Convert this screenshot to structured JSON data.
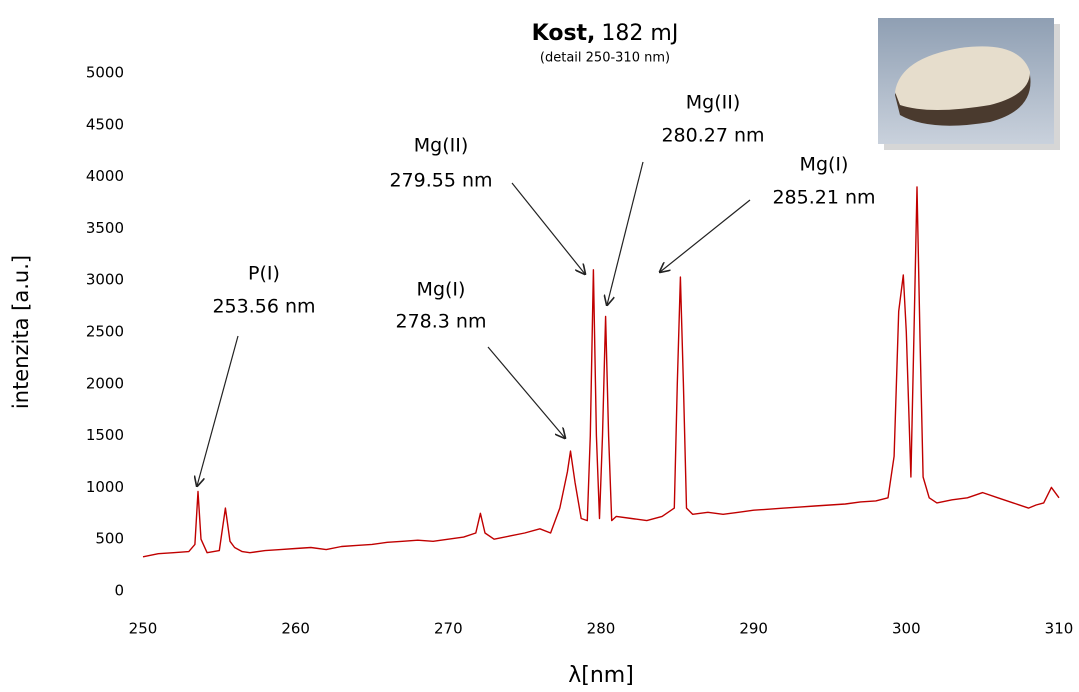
{
  "chart_data": {
    "type": "line",
    "title_parts": [
      "Kost,",
      "182 mJ"
    ],
    "subtitle": "(detail 250-310 nm)",
    "x_label": "λ[nm]",
    "y_label": "intenzita [a.u.]",
    "color": "#c00000",
    "grid": false,
    "xlim": [
      250,
      310
    ],
    "xticks": [
      250,
      260,
      270,
      280,
      290,
      300,
      310
    ],
    "ylim": [
      0,
      5000
    ],
    "yticks": [
      0,
      500,
      1000,
      1500,
      2000,
      2500,
      3000,
      3500,
      4000,
      4500,
      5000
    ],
    "x": [
      250,
      251,
      252,
      253,
      253.4,
      253.6,
      253.8,
      254.2,
      255,
      255.4,
      255.7,
      256,
      256.5,
      257,
      258,
      259,
      260,
      261,
      262,
      263,
      264,
      265,
      266,
      267,
      268,
      269,
      270,
      271,
      271.8,
      272.1,
      272.4,
      273,
      274,
      275,
      276,
      276.7,
      277.3,
      277.8,
      278,
      278.3,
      278.7,
      279.1,
      279.3,
      279.5,
      279.7,
      279.9,
      280.1,
      280.3,
      280.5,
      280.7,
      281,
      282,
      283,
      284,
      284.8,
      285,
      285.2,
      285.4,
      285.6,
      286,
      287,
      288,
      289,
      290,
      291,
      292,
      293,
      294,
      295,
      296,
      297,
      298,
      298.8,
      299.2,
      299.5,
      299.8,
      300,
      300.3,
      300.5,
      300.7,
      300.9,
      301.1,
      301.5,
      302,
      303,
      304,
      305,
      306,
      307,
      308,
      308.5,
      309,
      309.5,
      310
    ],
    "values": [
      330,
      360,
      370,
      380,
      450,
      960,
      500,
      370,
      390,
      800,
      480,
      420,
      380,
      370,
      390,
      400,
      410,
      420,
      400,
      430,
      440,
      450,
      470,
      480,
      490,
      480,
      500,
      520,
      560,
      750,
      560,
      500,
      530,
      560,
      600,
      560,
      800,
      1150,
      1350,
      1050,
      700,
      680,
      1500,
      3100,
      1500,
      700,
      1500,
      2650,
      1500,
      680,
      720,
      700,
      680,
      720,
      800,
      2000,
      3030,
      2000,
      800,
      740,
      760,
      740,
      760,
      780,
      790,
      800,
      810,
      820,
      830,
      840,
      860,
      870,
      900,
      1300,
      2700,
      3050,
      2500,
      1100,
      2500,
      3900,
      2400,
      1100,
      900,
      850,
      880,
      900,
      950,
      900,
      850,
      800,
      830,
      850,
      1000,
      900
    ],
    "annotations": [
      [
        "P(I)",
        "253.56 nm"
      ],
      [
        "Mg(I)",
        "278.3 nm"
      ],
      [
        "Mg(II)",
        "279.55 nm"
      ],
      [
        "Mg(II)",
        "280.27 nm"
      ],
      [
        "Mg(I)",
        "285.21 nm"
      ]
    ]
  }
}
